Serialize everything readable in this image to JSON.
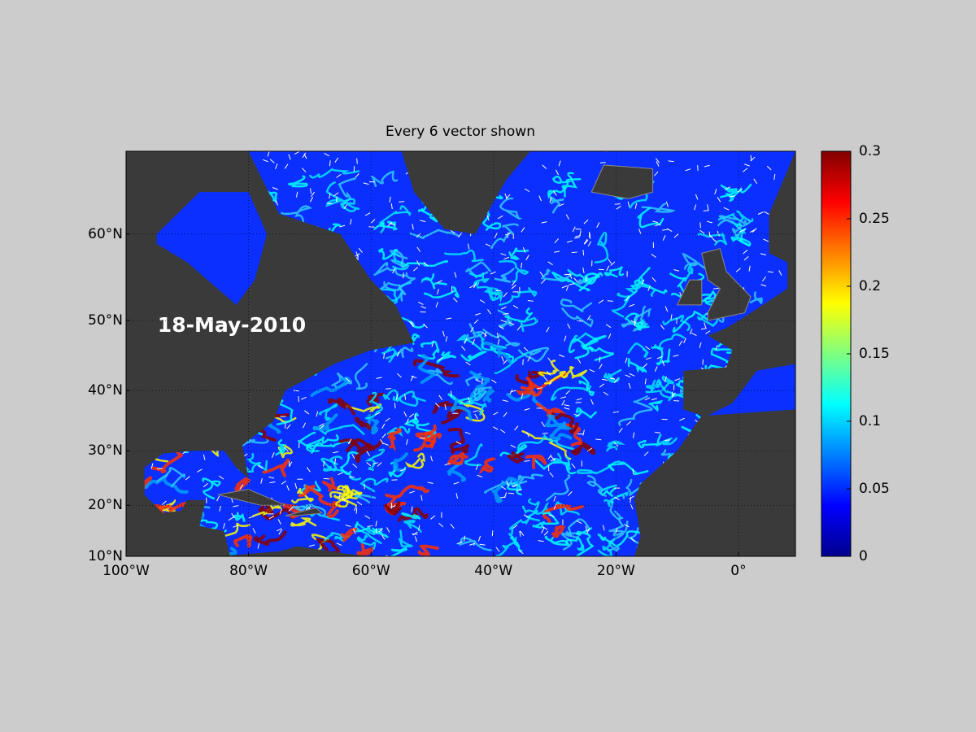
{
  "map": {
    "title": "Every 6 vector shown",
    "date_label": "18-May-2010",
    "xlim": [
      -100,
      9.3
    ],
    "ylim": [
      10,
      67.4
    ],
    "xticks": [
      {
        "value": -100,
        "label": "100°W"
      },
      {
        "value": -80,
        "label": "80°W"
      },
      {
        "value": -60,
        "label": "60°W"
      },
      {
        "value": -40,
        "label": "40°W"
      },
      {
        "value": -20,
        "label": "20°W"
      },
      {
        "value": 0,
        "label": "0°"
      }
    ],
    "yticks": [
      {
        "value": 10,
        "label": "10°N"
      },
      {
        "value": 20,
        "label": "20°N"
      },
      {
        "value": 30,
        "label": "30°N"
      },
      {
        "value": 40,
        "label": "40°N"
      },
      {
        "value": 50,
        "label": "50°N"
      },
      {
        "value": 60,
        "label": "60°N"
      }
    ],
    "colorbar": {
      "lim": [
        0,
        0.3
      ],
      "ticks": [
        0,
        0.05,
        0.1,
        0.15,
        0.2,
        0.25,
        0.3
      ]
    }
  }
}
